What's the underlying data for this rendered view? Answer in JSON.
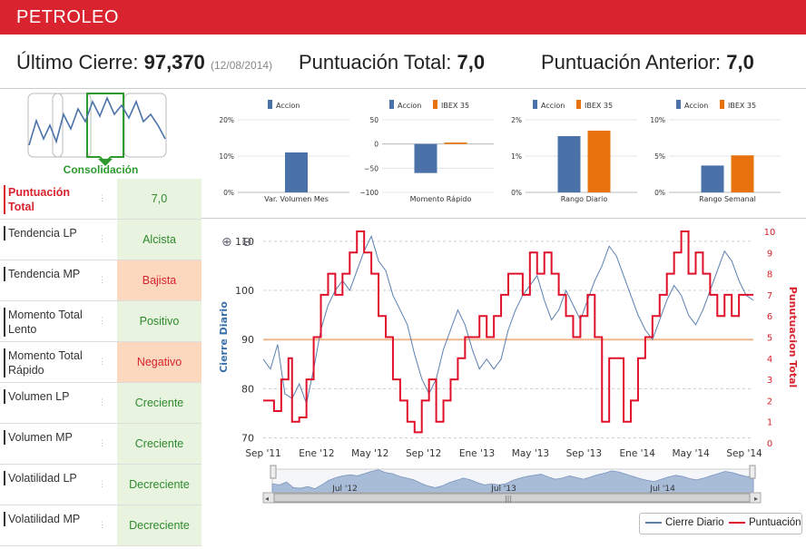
{
  "header": {
    "title": "PETROLEO"
  },
  "summary": {
    "last_close_label": "Último Cierre:",
    "last_close_value": "97,370",
    "last_close_date": "(12/08/2014)",
    "score_label": "Puntuación Total:",
    "score_value": "7,0",
    "prev_score_label": "Puntuación Anterior:",
    "prev_score_value": "7,0"
  },
  "tiles": {
    "label": "Consolidación"
  },
  "indicators": [
    {
      "label": "Puntuación Total",
      "value": "7,0",
      "tone": "gray",
      "highlight": true
    },
    {
      "label": "Tendencia LP",
      "value": "Alcista",
      "tone": "green"
    },
    {
      "label": "Tendencia MP",
      "value": "Bajista",
      "tone": "orange"
    },
    {
      "label": "Momento Total Lento",
      "value": "Positivo",
      "tone": "green"
    },
    {
      "label": "Momento Total Rápido",
      "value": "Negativo",
      "tone": "orange"
    },
    {
      "label": "Volumen LP",
      "value": "Creciente",
      "tone": "green"
    },
    {
      "label": "Volumen MP",
      "value": "Creciente",
      "tone": "green"
    },
    {
      "label": "Volatilidad LP",
      "value": "Decreciente",
      "tone": "green"
    },
    {
      "label": "Volatilidad MP",
      "value": "Decreciente",
      "tone": "green"
    }
  ],
  "colors": {
    "accion": "#4a72a8",
    "ibex": "#e8730e",
    "close": "#5a7fb0",
    "score": "#e0102a",
    "ref": "#f0b890"
  },
  "chart_data": [
    {
      "type": "bar",
      "category": "Var. Volumen Mes",
      "legend": [
        "Accion"
      ],
      "series": [
        {
          "name": "Accion",
          "values": [
            11
          ]
        }
      ],
      "yticks": [
        "20%",
        "10%",
        "0%"
      ],
      "ylim": [
        0,
        20
      ]
    },
    {
      "type": "bar",
      "category": "Momento Rápido",
      "legend": [
        "Accion",
        "IBEX 35"
      ],
      "series": [
        {
          "name": "Accion",
          "values": [
            -60
          ]
        },
        {
          "name": "IBEX 35",
          "values": [
            3
          ]
        }
      ],
      "yticks": [
        "50",
        "0",
        "−50",
        "−100"
      ],
      "ylim": [
        -100,
        50
      ]
    },
    {
      "type": "bar",
      "category": "Rango Diario",
      "legend": [
        "Accion",
        "IBEX 35"
      ],
      "series": [
        {
          "name": "Accion",
          "values": [
            1.55
          ]
        },
        {
          "name": "IBEX 35",
          "values": [
            1.7
          ]
        }
      ],
      "yticks": [
        "2%",
        "1%",
        "0%"
      ],
      "ylim": [
        0,
        2
      ]
    },
    {
      "type": "bar",
      "category": "Rango Semanal",
      "legend": [
        "Accion",
        "IBEX 35"
      ],
      "series": [
        {
          "name": "Accion",
          "values": [
            3.7
          ]
        },
        {
          "name": "IBEX 35",
          "values": [
            5.1
          ]
        }
      ],
      "yticks": [
        "10%",
        "5%",
        "0%"
      ],
      "ylim": [
        0,
        10
      ]
    },
    {
      "type": "line",
      "ylabel_left": "Cierre Diario",
      "ylabel_right": "Punutuacion Total",
      "yticks_left": [
        70,
        80,
        90,
        100,
        110
      ],
      "ylim_left": [
        69,
        112
      ],
      "yticks_right": [
        0,
        1,
        2,
        3,
        4,
        5,
        6,
        7,
        8,
        9,
        10
      ],
      "ylim_right": [
        0,
        10
      ],
      "xticks": [
        "Sep '11",
        "Ene '12",
        "May '12",
        "Sep '12",
        "Ene '13",
        "May '13",
        "Sep '13",
        "Ene '14",
        "May '14",
        "Sep '14"
      ],
      "navigator_labels": [
        "Jul '12",
        "Jul '13",
        "Jul '14"
      ],
      "ref_line_left": 90,
      "series": [
        {
          "name": "Cierre Diario",
          "axis": "left",
          "x": [
            0,
            2,
            4,
            6,
            8,
            10,
            12,
            14,
            16,
            18,
            20,
            22,
            24,
            26,
            28,
            30,
            32,
            34,
            36,
            38,
            40,
            42,
            44,
            46,
            48,
            50,
            52,
            54,
            56,
            58,
            60,
            62,
            64,
            66,
            68,
            70,
            72,
            74,
            76,
            78,
            80,
            82,
            84,
            86,
            88,
            90,
            92,
            94,
            96,
            98,
            100,
            102,
            104,
            106,
            108,
            110,
            112,
            114,
            116,
            118,
            120,
            122,
            124,
            126,
            128,
            130,
            132,
            134,
            136
          ],
          "values": [
            86,
            84,
            89,
            79,
            78,
            81,
            77,
            84,
            92,
            97,
            100,
            102,
            100,
            104,
            108,
            111,
            106,
            104,
            99,
            96,
            93,
            87,
            82,
            79,
            82,
            88,
            92,
            96,
            93,
            88,
            84,
            86,
            84,
            86,
            92,
            96,
            99,
            101,
            103,
            98,
            94,
            96,
            100,
            97,
            94,
            98,
            102,
            105,
            109,
            107,
            103,
            99,
            95,
            92,
            90,
            94,
            98,
            101,
            99,
            95,
            93,
            96,
            100,
            104,
            108,
            106,
            102,
            99,
            98
          ]
        },
        {
          "name": "Puntuación",
          "axis": "right",
          "x": [
            0,
            3,
            5,
            7,
            8,
            10,
            12,
            14,
            16,
            18,
            20,
            22,
            24,
            26,
            28,
            30,
            32,
            34,
            36,
            38,
            40,
            42,
            44,
            46,
            48,
            50,
            52,
            54,
            56,
            58,
            60,
            62,
            64,
            66,
            68,
            70,
            72,
            74,
            76,
            78,
            80,
            82,
            84,
            86,
            88,
            90,
            92,
            94,
            96,
            98,
            100,
            102,
            104,
            106,
            108,
            110,
            112,
            114,
            116,
            118,
            120,
            122,
            124,
            126,
            128,
            130,
            132,
            134,
            136
          ],
          "values": [
            2,
            1.5,
            3,
            4,
            1,
            1.2,
            3,
            5,
            7,
            8,
            7,
            8,
            9,
            10,
            9,
            8,
            6,
            5,
            3,
            2,
            1,
            0.5,
            2,
            3,
            1,
            2,
            3,
            4,
            5,
            5,
            6,
            5,
            6,
            7,
            8,
            8,
            7,
            9,
            8,
            9,
            8,
            7,
            6,
            5,
            6,
            7,
            5,
            1,
            4,
            4,
            1,
            2,
            4,
            5,
            6,
            7,
            8,
            9,
            10,
            8,
            9,
            8,
            7,
            6,
            7,
            6,
            7,
            7,
            7
          ]
        }
      ]
    }
  ],
  "legend": {
    "close": "Cierre Diario",
    "score": "Puntuación"
  }
}
